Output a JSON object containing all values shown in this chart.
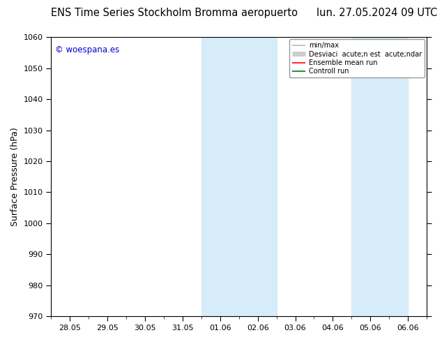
{
  "title_left": "ENS Time Series Stockholm Bromma aeropuerto",
  "title_right": "lun. 27.05.2024 09 UTC",
  "ylabel": "Surface Pressure (hPa)",
  "ylim": [
    970,
    1060
  ],
  "yticks": [
    970,
    980,
    990,
    1000,
    1010,
    1020,
    1030,
    1040,
    1050,
    1060
  ],
  "xtick_labels": [
    "28.05",
    "29.05",
    "30.05",
    "31.05",
    "01.06",
    "02.06",
    "03.06",
    "04.06",
    "05.06",
    "06.06"
  ],
  "xtick_positions": [
    0,
    1,
    2,
    3,
    4,
    5,
    6,
    7,
    8,
    9
  ],
  "x_min": -0.5,
  "x_max": 9.5,
  "shaded_bands": [
    {
      "x_start": 3.5,
      "x_end": 5.5,
      "color": "#d6ecf8"
    },
    {
      "x_start": 7.5,
      "x_end": 9.0,
      "color": "#d6ecf8"
    }
  ],
  "watermark_text": "© woespana.es",
  "watermark_color": "#0000cc",
  "bg_color": "#ffffff",
  "legend_entries": [
    {
      "label": "min/max",
      "color": "#bbbbbb",
      "lw": 1.2
    },
    {
      "label": "Desviaci  acute;n est  acute;ndar",
      "color": "#cccccc",
      "lw": 5
    },
    {
      "label": "Ensemble mean run",
      "color": "#ff0000",
      "lw": 1.2
    },
    {
      "label": "Controll run",
      "color": "#008000",
      "lw": 1.2
    }
  ],
  "title_fontsize": 10.5,
  "axis_label_fontsize": 9,
  "tick_fontsize": 8,
  "legend_fontsize": 7
}
